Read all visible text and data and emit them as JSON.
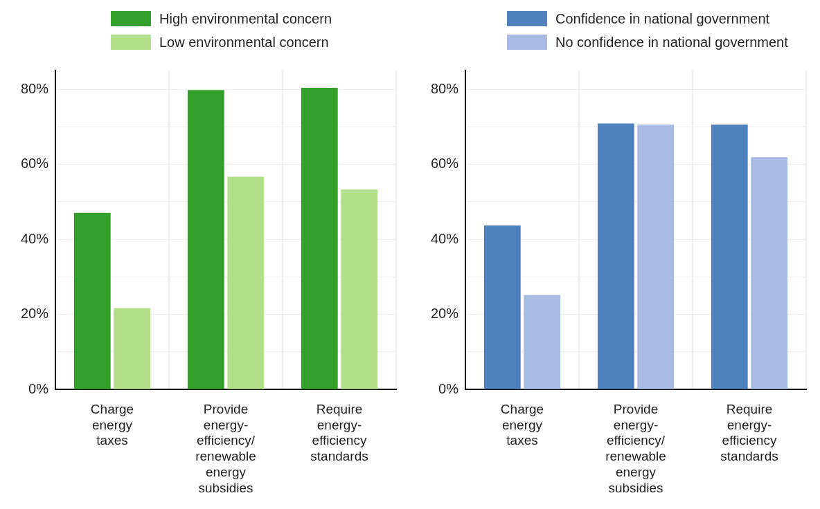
{
  "chart_data": [
    {
      "type": "bar",
      "categories": [
        "Charge energy taxes",
        "Provide energy-efficiency/ renewable energy subsidies",
        "Require energy-efficiency standards"
      ],
      "series": [
        {
          "name": "High environmental concern",
          "color": "#33a02c",
          "values": [
            47.1,
            79.8,
            80.4
          ]
        },
        {
          "name": "Low environmental concern",
          "color": "#b2df8a",
          "values": [
            21.7,
            56.7,
            53.3
          ]
        }
      ],
      "ylim": [
        0,
        85
      ],
      "yticks": [
        {
          "value": 0,
          "label": "0%"
        },
        {
          "value": 10,
          "label": null
        },
        {
          "value": 20,
          "label": "20%"
        },
        {
          "value": 30,
          "label": null
        },
        {
          "value": 40,
          "label": "40%"
        },
        {
          "value": 50,
          "label": null
        },
        {
          "value": 60,
          "label": "60%"
        },
        {
          "value": 70,
          "label": null
        },
        {
          "value": 80,
          "label": "80%"
        }
      ],
      "grid": true,
      "legend": "top"
    },
    {
      "type": "bar",
      "categories": [
        "Charge energy taxes",
        "Provide energy-efficiency/ renewable energy subsidies",
        "Require energy-efficiency standards"
      ],
      "series": [
        {
          "name": "Confidence in national government",
          "color": "#4f81bd",
          "values": [
            43.7,
            70.9,
            70.6
          ]
        },
        {
          "name": "No confidence in national government",
          "color": "#a9bae3",
          "values": [
            25.2,
            70.6,
            61.9
          ]
        }
      ],
      "ylim": [
        0,
        85
      ],
      "yticks": [
        {
          "value": 0,
          "label": "0%"
        },
        {
          "value": 10,
          "label": null
        },
        {
          "value": 20,
          "label": "20%"
        },
        {
          "value": 30,
          "label": null
        },
        {
          "value": 40,
          "label": "40%"
        },
        {
          "value": 50,
          "label": null
        },
        {
          "value": 60,
          "label": "60%"
        },
        {
          "value": 70,
          "label": null
        },
        {
          "value": 80,
          "label": "80%"
        }
      ],
      "grid": true,
      "legend": "top"
    }
  ]
}
